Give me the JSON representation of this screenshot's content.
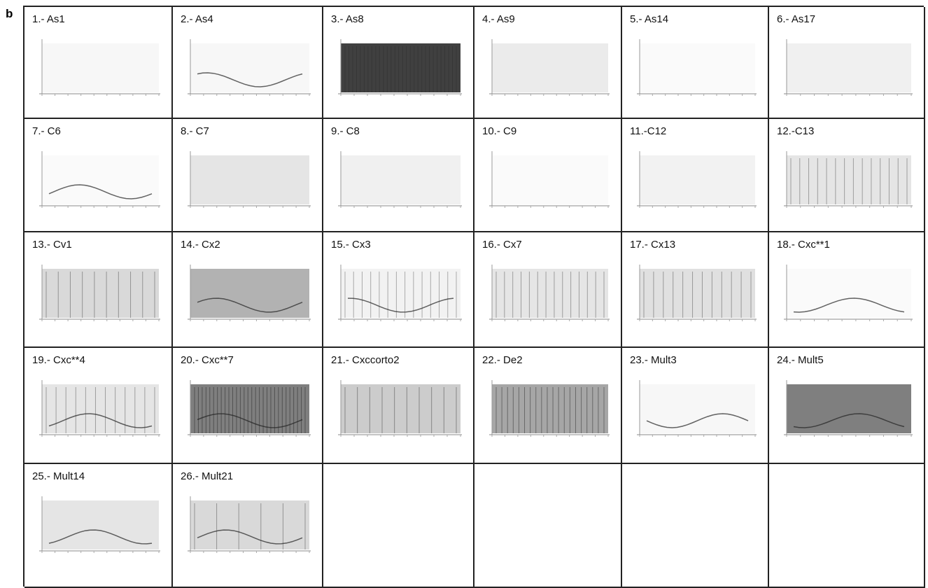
{
  "panel_label": "b",
  "cells": [
    "1.- As1",
    "2.- As4",
    "3.- As8",
    "4.- As9",
    "5.- As14",
    "6.- As17",
    "7.- C6",
    "8.- C7",
    "9.- C8",
    "10.- C9",
    "11.-C12",
    "12.-C13",
    "13.- Cv1",
    "14.- Cx2",
    "15.- Cx3",
    "16.- Cx7",
    "17.- Cx13",
    "18.- Cxc**1",
    "19.- Cxc**4",
    "20.- Cxc**7",
    "21.- Cxccorto2",
    "22.- De2",
    "23.- Mult3",
    "24.- Mult5",
    "25.- Mult14",
    "26.- Mult21"
  ]
}
